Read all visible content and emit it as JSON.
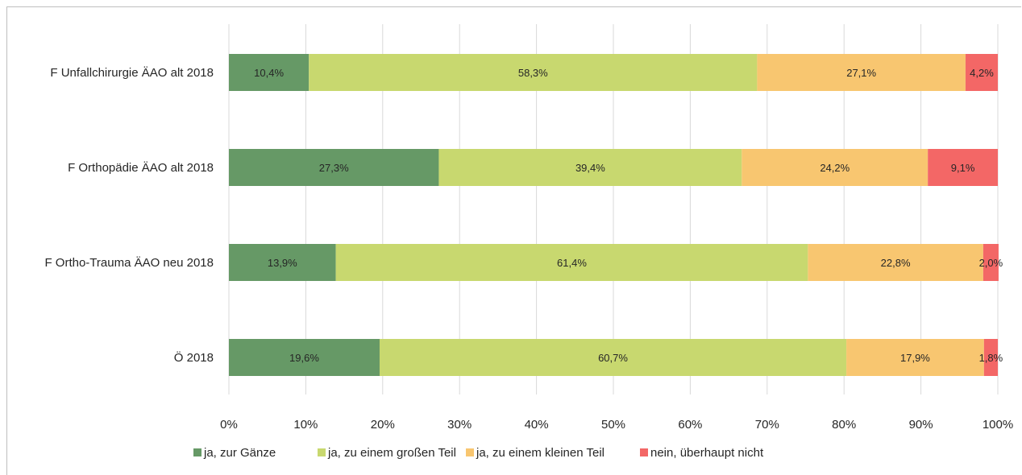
{
  "chart_data": {
    "type": "bar",
    "orientation": "horizontal",
    "stacked": "percent",
    "categories": [
      "F Unfallchirurgie ÄAO alt 2018",
      "F Orthopädie ÄAO alt 2018",
      "F Ortho-Trauma ÄAO neu 2018",
      "Ö 2018"
    ],
    "series": [
      {
        "name": "ja, zur Gänze",
        "color": "#669966",
        "values": [
          10.4,
          27.3,
          13.9,
          19.6
        ],
        "labels": [
          "10,4%",
          "27,3%",
          "13,9%",
          "19,6%"
        ]
      },
      {
        "name": "ja, zu einem großen Teil",
        "color": "#c8d86f",
        "values": [
          58.3,
          39.4,
          61.4,
          60.7
        ],
        "labels": [
          "58,3%",
          "39,4%",
          "61,4%",
          "60,7%"
        ]
      },
      {
        "name": "ja, zu einem kleinen Teil",
        "color": "#f8c670",
        "values": [
          27.1,
          24.2,
          22.8,
          17.9
        ],
        "labels": [
          "27,1%",
          "24,2%",
          "22,8%",
          "17,9%"
        ]
      },
      {
        "name": "nein, überhaupt nicht",
        "color": "#f36766",
        "values": [
          4.2,
          9.1,
          2.0,
          1.8
        ],
        "labels": [
          "4,2%",
          "9,1%",
          "2,0%",
          "1,8%"
        ]
      }
    ],
    "xticks": [
      "0%",
      "10%",
      "20%",
      "30%",
      "40%",
      "50%",
      "60%",
      "70%",
      "80%",
      "90%",
      "100%"
    ],
    "xlim": [
      0,
      100
    ],
    "grid": true,
    "legend": "bottom",
    "title": "",
    "xlabel": "",
    "ylabel": ""
  }
}
